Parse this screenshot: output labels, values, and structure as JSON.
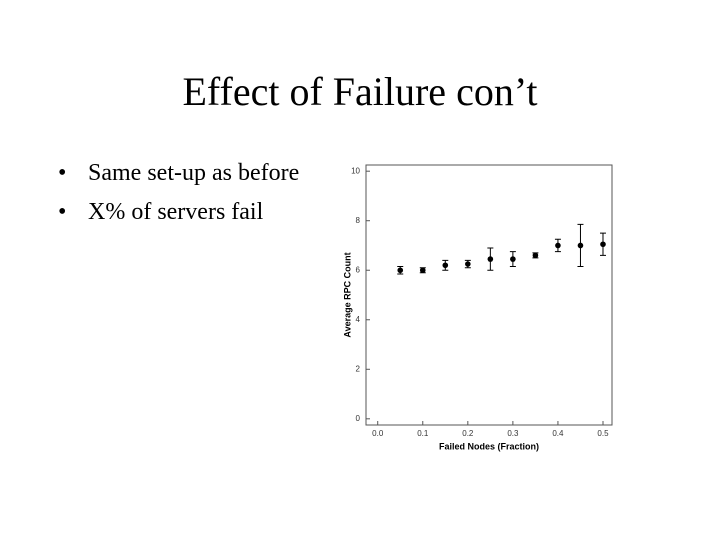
{
  "slide": {
    "title": "Effect of Failure con’t",
    "bullets": [
      "Same set-up as before",
      "X% of servers fail"
    ]
  },
  "chart_data": {
    "type": "scatter",
    "x_label": "Failed Nodes (Fraction)",
    "y_label": "Average RPC Count",
    "xlim": [
      -0.026,
      0.52
    ],
    "ylim": [
      -0.25,
      10.25
    ],
    "xticks": [
      {
        "value": 0,
        "label": "0.0"
      },
      0.1,
      0.2,
      0.3,
      0.4,
      0.5
    ],
    "yticks": [
      0,
      2,
      4,
      6,
      8,
      10
    ],
    "series": [
      {
        "color": "#000000",
        "x": [
          0.05,
          0.1,
          0.15,
          0.2,
          0.25,
          0.3,
          0.35,
          0.4,
          0.45,
          0.5
        ],
        "values": [
          6.0,
          6.0,
          6.2,
          6.25,
          6.45,
          6.45,
          6.6,
          7.0,
          7.0,
          7.05
        ],
        "errors": [
          0.15,
          0.1,
          0.2,
          0.15,
          0.45,
          0.3,
          0.1,
          0.25,
          0.85,
          0.45
        ]
      }
    ]
  }
}
